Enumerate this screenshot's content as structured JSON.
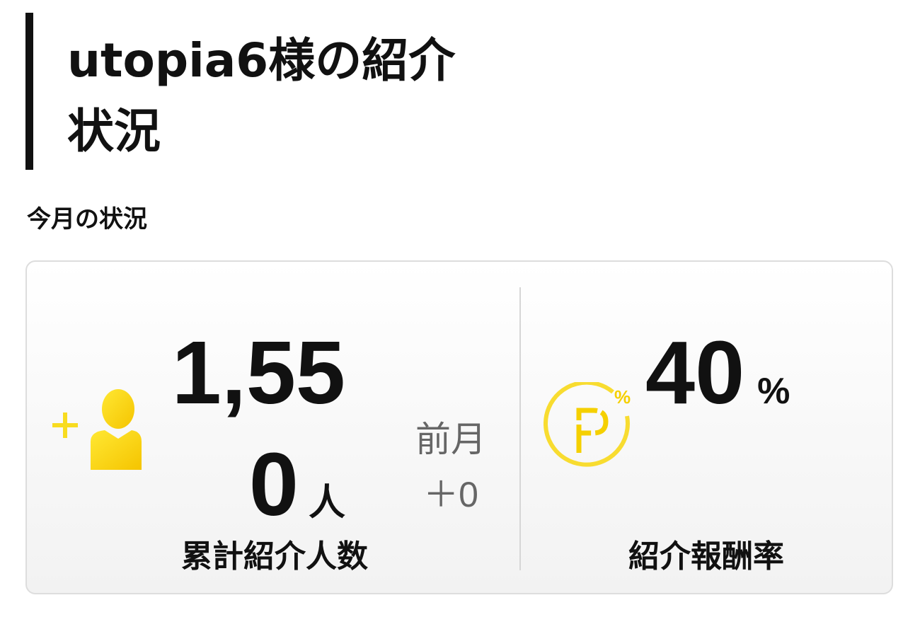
{
  "header": {
    "title": "utopia6様の紹介状況"
  },
  "section": {
    "subtitle": "今月の状況"
  },
  "stats": {
    "referrals": {
      "value": "1,550",
      "unit": "人",
      "label": "累計紹介人数",
      "prev_label": "前月",
      "prev_change": "＋0",
      "icon": "add-user-icon"
    },
    "reward_rate": {
      "value": "40",
      "unit": "%",
      "label": "紹介報酬率",
      "icon": "point-percent-icon"
    }
  },
  "colors": {
    "accent": "#f5d000",
    "muted": "#666666",
    "text": "#111111"
  }
}
